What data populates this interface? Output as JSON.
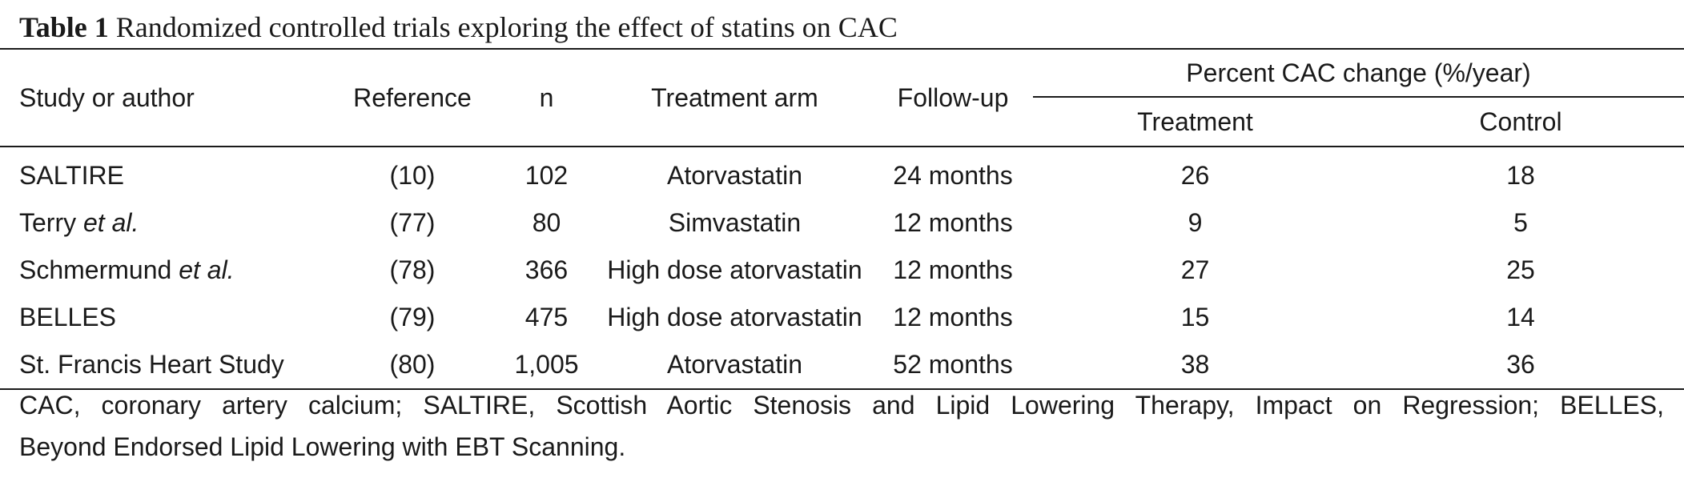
{
  "caption": {
    "label": "Table 1",
    "text": "Randomized controlled trials exploring the effect of statins on CAC"
  },
  "table": {
    "headers": {
      "study": "Study or author",
      "reference": "Reference",
      "n": "n",
      "treatment_arm": "Treatment arm",
      "follow_up": "Follow-up",
      "group": "Percent CAC change (%/year)",
      "treatment": "Treatment",
      "control": "Control"
    },
    "rows": [
      {
        "study": "SALTIRE",
        "study_suffix": "",
        "reference": "(10)",
        "n": "102",
        "arm": "Atorvastatin",
        "follow_up": "24 months",
        "treatment": "26",
        "control": "18"
      },
      {
        "study": "Terry ",
        "study_suffix": "et al.",
        "reference": "(77)",
        "n": "80",
        "arm": "Simvastatin",
        "follow_up": "12 months",
        "treatment": "9",
        "control": "5"
      },
      {
        "study": "Schmermund ",
        "study_suffix": "et al.",
        "reference": "(78)",
        "n": "366",
        "arm": "High dose atorvastatin",
        "follow_up": "12 months",
        "treatment": "27",
        "control": "25"
      },
      {
        "study": "BELLES",
        "study_suffix": "",
        "reference": "(79)",
        "n": "475",
        "arm": "High dose atorvastatin",
        "follow_up": "12 months",
        "treatment": "15",
        "control": "14"
      },
      {
        "study": "St. Francis Heart Study",
        "study_suffix": "",
        "reference": "(80)",
        "n": "1,005",
        "arm": "Atorvastatin",
        "follow_up": "52 months",
        "treatment": "38",
        "control": "36"
      }
    ]
  },
  "footnote": {
    "line1": "CAC, coronary artery calcium; SALTIRE, Scottish Aortic Stenosis and Lipid Lowering Therapy, Impact on Regression; BELLES,",
    "line2": "Beyond Endorsed Lipid Lowering with EBT Scanning."
  }
}
